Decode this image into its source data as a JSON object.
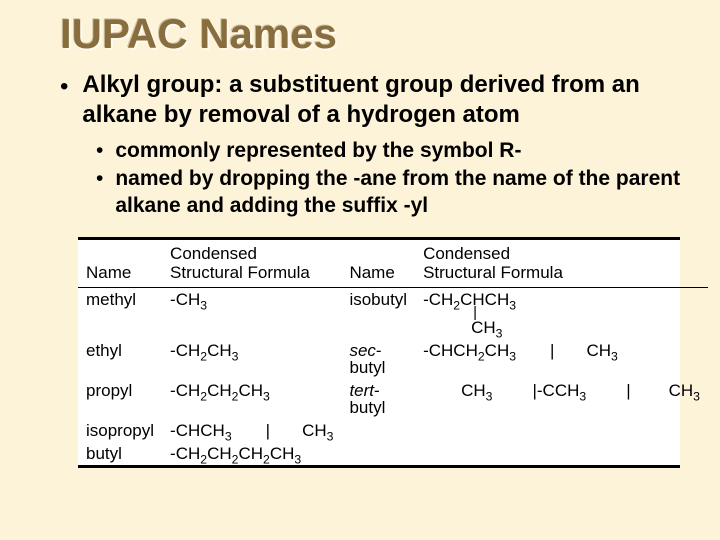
{
  "title": "IUPAC Names",
  "main_bullet": {
    "term": "Alkyl group:",
    "definition": " a substituent group derived from an alkane by removal of a hydrogen atom"
  },
  "sub_bullets": [
    {
      "text": "commonly represented by the symbol R-"
    },
    {
      "before": "named by dropping the -",
      "emph1": "ane",
      "mid": " from the name of the parent alkane and adding the suffix -",
      "emph2": "yl"
    }
  ],
  "table": {
    "headers": {
      "name": "Name",
      "formula_l1": "Condensed",
      "formula_l2": "Structural Formula"
    },
    "left": [
      {
        "name": "methyl",
        "formula_main": "-CH3"
      },
      {
        "name": "ethyl",
        "formula_main": "-CH2CH3"
      },
      {
        "name": "propyl",
        "formula_main": "-CH2CH2CH3"
      },
      {
        "name": "isopropyl",
        "formula_main": "-CHCH3",
        "branch": "CH3",
        "branch_class": "branch2",
        "vbar_class": "vbar2"
      },
      {
        "name": "butyl",
        "formula_main": "-CH2CH2CH2CH3"
      }
    ],
    "right": [
      {
        "name": "isobutyl",
        "formula_main": "-CH2CHCH3",
        "branch": "CH3",
        "branch_class": "branch",
        "vbar_class": "vbar"
      },
      {
        "name_prefix_italic": "sec",
        "name_suffix": "-butyl",
        "formula_main": "-CHCH2CH3",
        "branch": "CH3",
        "branch_class": "branch2",
        "vbar_class": "vbar2"
      },
      {
        "name_prefix_italic": "tert",
        "name_suffix": "-butyl",
        "formula_main": "-CCH3",
        "branch": "CH3",
        "branch_double": true,
        "branch_class": "branch3",
        "vbar_class": "vbar3"
      }
    ]
  },
  "colors": {
    "background": "#fdf3d9",
    "title": "#886d3e",
    "text": "#000000",
    "table_bg": "#ffffff"
  }
}
